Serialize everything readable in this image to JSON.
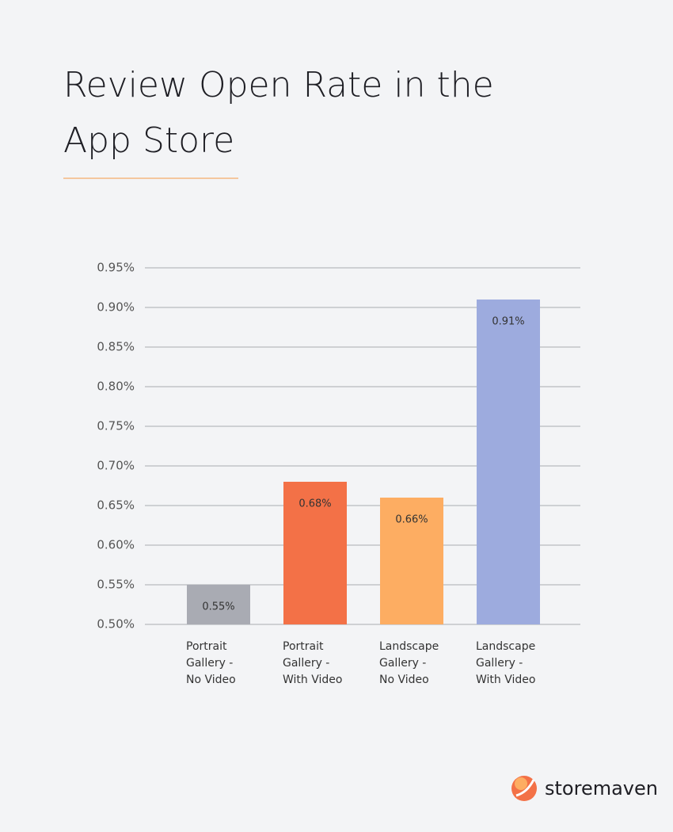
{
  "chart_data": {
    "type": "bar",
    "title": [
      "Review Open Rate in the",
      "App Store"
    ],
    "categories": [
      [
        "Portrait",
        "Gallery -",
        "No Video"
      ],
      [
        "Portrait",
        "Gallery -",
        "With Video"
      ],
      [
        "Landscape",
        "Gallery -",
        "No Video"
      ],
      [
        "Landscape",
        "Gallery -",
        "With Video"
      ]
    ],
    "values": [
      0.55,
      0.68,
      0.66,
      0.91
    ],
    "value_labels": [
      "0.55%",
      "0.68%",
      "0.66%",
      "0.91%"
    ],
    "colors": [
      "#a9abb3",
      "#f37147",
      "#fdad62",
      "#9dabde"
    ],
    "ylim": [
      0.5,
      0.95
    ],
    "yticks": [
      {
        "value": 0.5,
        "label": "0.50%"
      },
      {
        "value": 0.55,
        "label": "0.55%"
      },
      {
        "value": 0.6,
        "label": "0.60%"
      },
      {
        "value": 0.65,
        "label": "0.65%"
      },
      {
        "value": 0.7,
        "label": "0.70%"
      },
      {
        "value": 0.75,
        "label": "0.75%"
      },
      {
        "value": 0.8,
        "label": "0.80%"
      },
      {
        "value": 0.85,
        "label": "0.85%"
      },
      {
        "value": 0.9,
        "label": "0.90%"
      },
      {
        "value": 0.95,
        "label": "0.95%"
      }
    ],
    "grid": true
  },
  "brand": "storemaven"
}
